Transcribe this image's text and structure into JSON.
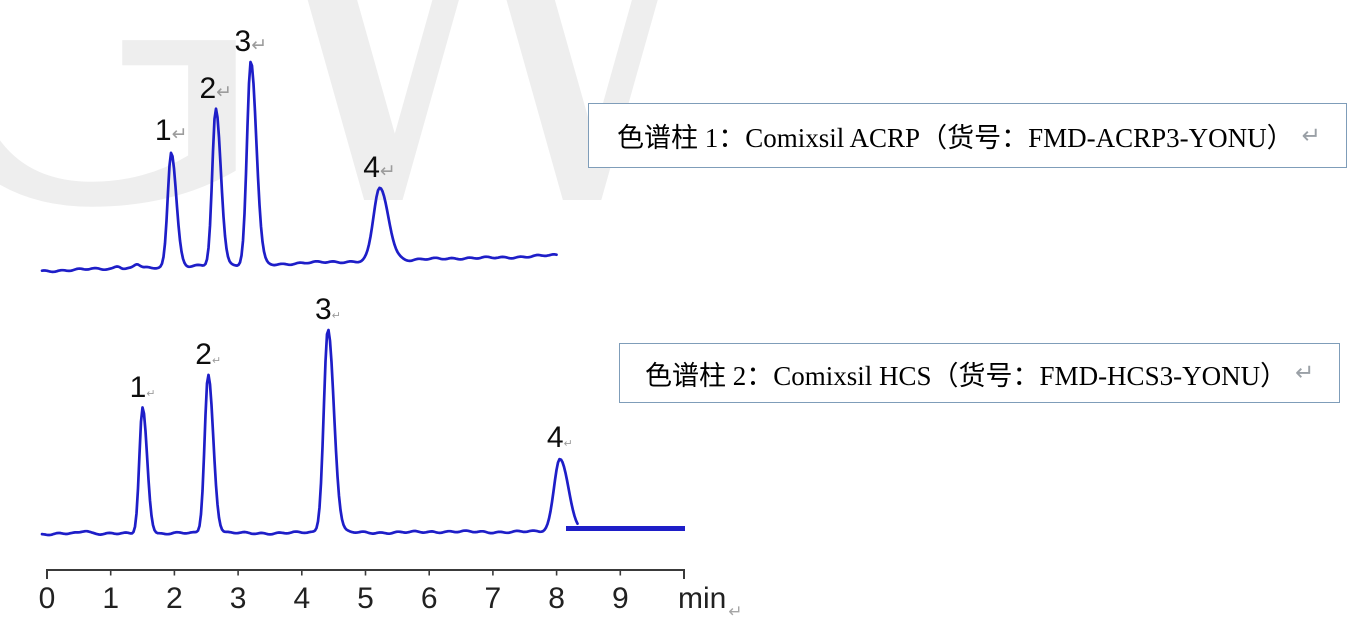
{
  "watermark": {
    "text": "GW"
  },
  "icons": {
    "return_mark": "↵"
  },
  "boxes": [
    {
      "text": "色谱柱 1：Comixsil ACRP（货号：FMD-ACRP3-YONU）"
    },
    {
      "text": "色谱柱 2：Comixsil HCS（货号：FMD-HCS3-YONU）"
    }
  ],
  "axis": {
    "unit": "min",
    "ticks": [
      "0",
      "1",
      "2",
      "3",
      "4",
      "5",
      "6",
      "7",
      "8",
      "9"
    ]
  },
  "chart_data": [
    {
      "type": "line",
      "series_name": "Column 1: Comixsil ACRP",
      "caption": "色谱柱 1：Comixsil ACRP（货号：FMD-ACRP3-YONU）",
      "xlabel": "min",
      "x_range": [
        0,
        10
      ],
      "line_color": "#1e1ec8",
      "grid": false,
      "peaks": [
        {
          "label": "1",
          "time_min": 1.95,
          "rel_height": 0.57,
          "sigma_min": 0.055
        },
        {
          "label": "2",
          "time_min": 2.65,
          "rel_height": 0.77,
          "sigma_min": 0.055
        },
        {
          "label": "3",
          "time_min": 3.2,
          "rel_height": 1.0,
          "sigma_min": 0.06
        },
        {
          "label": "4",
          "time_min": 5.22,
          "rel_height": 0.36,
          "sigma_min": 0.095
        }
      ]
    },
    {
      "type": "line",
      "series_name": "Column 2: Comixsil HCS",
      "caption": "色谱柱 2：Comixsil HCS（货号：FMD-HCS3-YONU）",
      "xlabel": "min",
      "x_range": [
        0,
        10
      ],
      "line_color": "#1e1ec8",
      "grid": false,
      "peaks": [
        {
          "label": "1",
          "time_min": 1.5,
          "rel_height": 0.62,
          "sigma_min": 0.05
        },
        {
          "label": "2",
          "time_min": 2.53,
          "rel_height": 0.78,
          "sigma_min": 0.055
        },
        {
          "label": "3",
          "time_min": 4.41,
          "rel_height": 1.0,
          "sigma_min": 0.065
        },
        {
          "label": "4",
          "time_min": 8.05,
          "rel_height": 0.36,
          "sigma_min": 0.09
        }
      ]
    }
  ]
}
